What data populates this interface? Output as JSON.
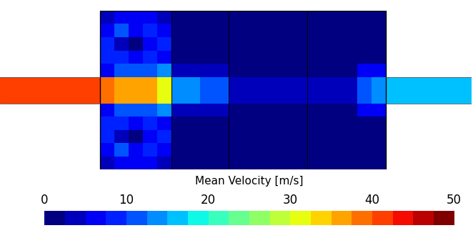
{
  "chart_data": {
    "type": "heatmap",
    "tick_labels": false,
    "cells": [
      [
        null,
        null,
        null,
        null,
        null,
        null,
        null,
        4,
        6,
        7,
        6,
        3,
        2,
        2,
        2,
        2,
        2,
        2,
        2,
        2,
        2,
        2,
        2,
        2,
        2,
        2,
        2,
        null,
        null,
        null,
        null,
        null,
        null
      ],
      [
        null,
        null,
        null,
        null,
        null,
        null,
        null,
        7,
        10,
        6,
        9,
        5,
        2,
        2,
        2,
        2,
        2,
        2,
        2,
        2,
        2,
        2,
        2,
        2,
        2,
        2,
        2,
        null,
        null,
        null,
        null,
        null,
        null
      ],
      [
        null,
        null,
        null,
        null,
        null,
        null,
        null,
        9,
        4,
        1,
        5,
        8,
        2,
        2,
        2,
        2,
        2,
        2,
        2,
        2,
        2,
        2,
        2,
        2,
        2,
        2,
        2,
        null,
        null,
        null,
        null,
        null,
        null
      ],
      [
        null,
        null,
        null,
        null,
        null,
        null,
        null,
        8,
        9,
        6,
        9,
        7,
        2,
        2,
        2,
        2,
        2,
        2,
        2,
        2,
        2,
        2,
        2,
        2,
        2,
        2,
        2,
        null,
        null,
        null,
        null,
        null,
        null
      ],
      [
        null,
        null,
        null,
        null,
        null,
        null,
        null,
        6,
        10,
        12,
        12,
        14,
        3,
        3,
        3,
        3,
        2,
        2,
        2,
        2,
        2,
        2,
        2,
        2,
        2,
        6,
        6,
        null,
        null,
        null,
        null,
        null,
        null
      ],
      [
        40,
        40,
        40,
        40,
        40,
        40,
        40,
        38,
        37,
        36,
        35,
        32,
        14,
        13,
        12,
        12,
        3,
        3,
        3,
        3,
        3,
        3,
        3,
        3,
        3,
        10,
        13,
        15,
        15,
        15,
        15,
        15,
        15
      ],
      [
        40,
        40,
        40,
        40,
        40,
        40,
        40,
        38,
        37,
        36,
        35,
        32,
        14,
        13,
        12,
        12,
        3,
        3,
        3,
        3,
        3,
        3,
        3,
        3,
        3,
        10,
        13,
        15,
        15,
        15,
        15,
        15,
        15
      ],
      [
        null,
        null,
        null,
        null,
        null,
        null,
        null,
        6,
        10,
        12,
        12,
        14,
        3,
        3,
        3,
        3,
        2,
        2,
        2,
        2,
        2,
        2,
        2,
        2,
        2,
        6,
        6,
        null,
        null,
        null,
        null,
        null,
        null
      ],
      [
        null,
        null,
        null,
        null,
        null,
        null,
        null,
        8,
        9,
        6,
        9,
        7,
        2,
        2,
        2,
        2,
        2,
        2,
        2,
        2,
        2,
        2,
        2,
        2,
        2,
        2,
        2,
        null,
        null,
        null,
        null,
        null,
        null
      ],
      [
        null,
        null,
        null,
        null,
        null,
        null,
        null,
        9,
        4,
        1,
        5,
        8,
        2,
        2,
        2,
        2,
        2,
        2,
        2,
        2,
        2,
        2,
        2,
        2,
        2,
        2,
        2,
        null,
        null,
        null,
        null,
        null,
        null
      ],
      [
        null,
        null,
        null,
        null,
        null,
        null,
        null,
        7,
        10,
        6,
        9,
        5,
        2,
        2,
        2,
        2,
        2,
        2,
        2,
        2,
        2,
        2,
        2,
        2,
        2,
        2,
        2,
        null,
        null,
        null,
        null,
        null,
        null
      ],
      [
        null,
        null,
        null,
        null,
        null,
        null,
        null,
        4,
        6,
        7,
        6,
        3,
        2,
        2,
        2,
        2,
        2,
        2,
        2,
        2,
        2,
        2,
        2,
        2,
        2,
        2,
        2,
        null,
        null,
        null,
        null,
        null,
        null
      ]
    ],
    "colorbar_label": "Mean Velocity [m/s]",
    "colorbar_range": [
      0,
      50
    ],
    "colorbar_ticks": [
      0,
      10,
      20,
      30,
      40,
      50
    ]
  }
}
